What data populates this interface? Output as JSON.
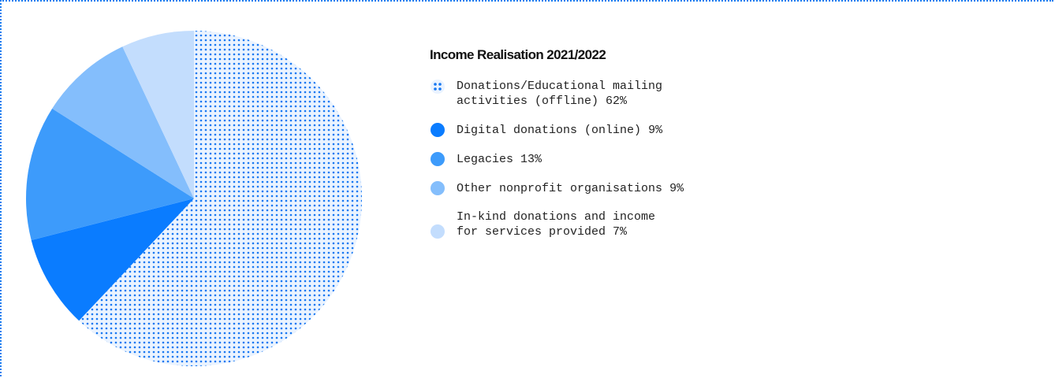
{
  "chart_data": {
    "type": "pie",
    "title": "Income Realisation 2021/2022",
    "categories": [
      "Donations/Educational mailing activities (offline)",
      "Digital donations (online)",
      "Legacies",
      "Other nonprofit organisations",
      "In-kind donations and income for services provided"
    ],
    "values": [
      62,
      9,
      13,
      9,
      7
    ],
    "value_labels": [
      "62%",
      "9%",
      "13%",
      "9%",
      "7%"
    ],
    "colors": [
      "#1677f2",
      "#0a7cff",
      "#3d9bfb",
      "#84befc",
      "#c3ddfd"
    ],
    "patterns": [
      "dots",
      "solid",
      "solid",
      "solid",
      "solid"
    ]
  }
}
